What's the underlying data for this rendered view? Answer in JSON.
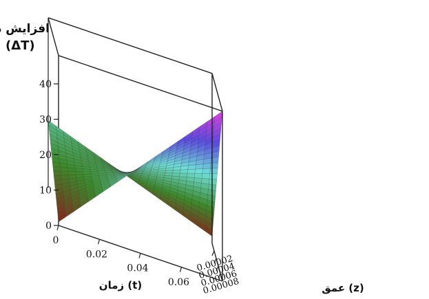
{
  "chart_data": {
    "type": "surface3d",
    "title": "",
    "zlabel_line1": "افزایش دما",
    "zlabel_line2": "(ΔT)",
    "xlabel": "زمان (t)",
    "ylabel": "عمق (z)",
    "z_axis": {
      "range": [
        0,
        48
      ],
      "ticks": [
        "0",
        "10",
        "20",
        "30",
        "40"
      ]
    },
    "t_axis": {
      "range": [
        0,
        0.08
      ],
      "ticks": [
        "0",
        "0.02",
        "0.04",
        "0.06"
      ]
    },
    "z_depth_axis": {
      "range": [
        0,
        0.0001
      ],
      "ticks": [
        "0.00002",
        "0.00004",
        "0.00006",
        "0.00008"
      ]
    },
    "colormap": [
      "#8b1a1a",
      "#3b8a2a",
      "#6fe0d8",
      "#5a4ae0",
      "#e040e0"
    ],
    "surface_samples": [
      {
        "t": 0,
        "z": 0,
        "dT": 1
      },
      {
        "t": 0,
        "z": 0.0001,
        "dT": 19
      },
      {
        "t": 0.08,
        "z": 0,
        "dT": 48
      },
      {
        "t": 0.08,
        "z": 0.0001,
        "dT": 2
      }
    ],
    "grid": false
  }
}
